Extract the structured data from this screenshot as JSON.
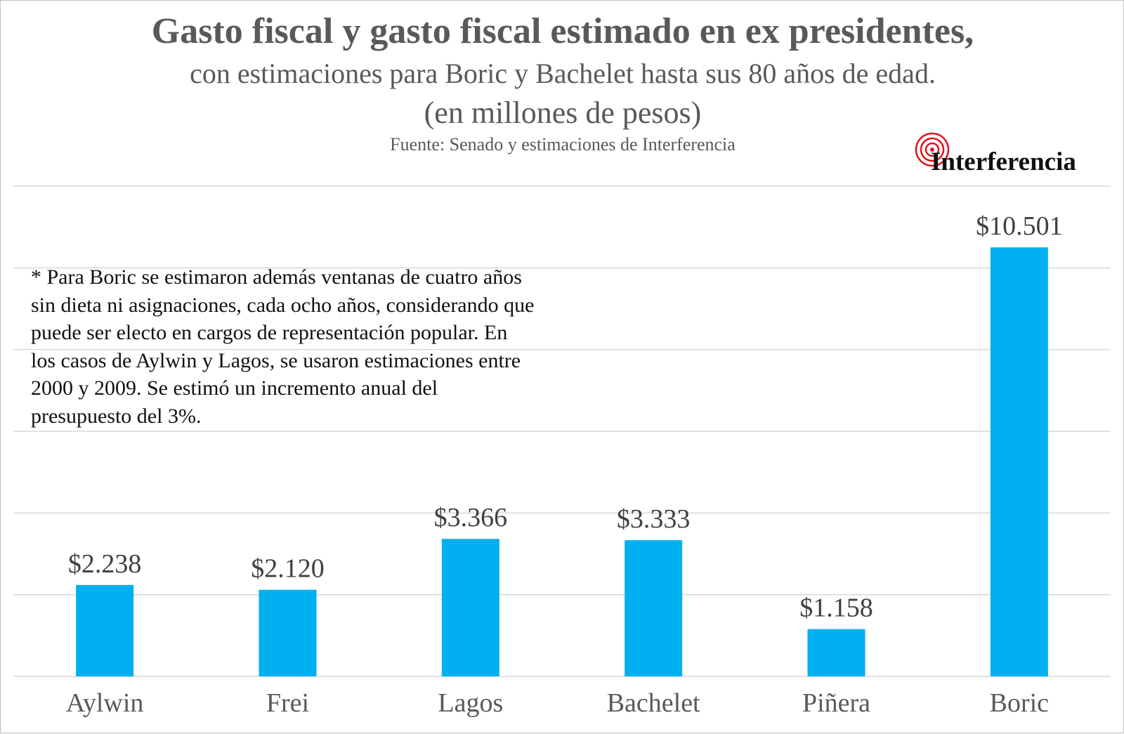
{
  "header": {
    "title": "Gasto fiscal y gasto fiscal estimado en ex presidentes,",
    "subtitle": "con estimaciones para Boric y Bachelet hasta sus 80 años de edad.",
    "unit": "(en millones de pesos)",
    "source": "Fuente: Senado y estimaciones de Interferencia"
  },
  "logo": {
    "text": "Interferencia",
    "color": "#e0141e"
  },
  "note": "* Para Boric se estimaron además ventanas de cuatro años sin dieta ni asignaciones, cada ocho años, considerando que puede ser electo en cargos de representación popular. En los casos de Aylwin y Lagos, se usaron estimaciones entre 2000 y 2009. Se estimó un incremento anual del presupuesto del 3%.",
  "chart_data": {
    "type": "bar",
    "title": "Gasto fiscal y gasto fiscal estimado en ex presidentes,",
    "subtitle": "con estimaciones para Boric y Bachelet hasta sus 80 años de edad.",
    "ylabel": "(en millones de pesos)",
    "xlabel": "",
    "categories": [
      "Aylwin",
      "Frei",
      "Lagos",
      "Bachelet",
      "Piñera",
      "Boric"
    ],
    "values": [
      2238,
      2120,
      3366,
      3333,
      1158,
      10501
    ],
    "value_labels": [
      "$2.238",
      "$2.120",
      "$3.366",
      "$3.333",
      "$1.158",
      "$10.501"
    ],
    "ylim": [
      0,
      12000
    ],
    "grid_step": 2000,
    "grid": true,
    "bar_color": "#00b0f0",
    "legend": "none"
  }
}
